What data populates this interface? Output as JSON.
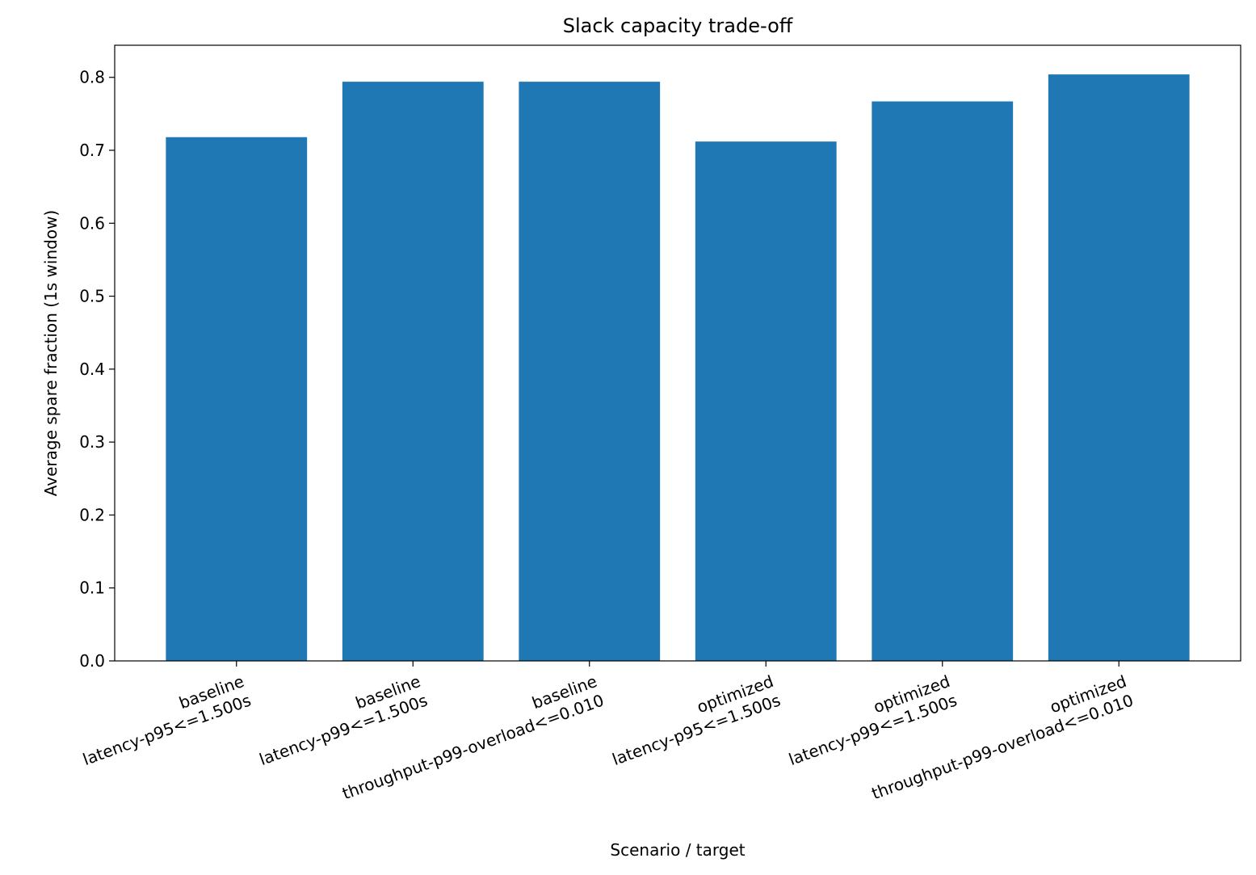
{
  "chart_data": {
    "type": "bar",
    "title": "Slack capacity trade-off",
    "xlabel": "Scenario / target",
    "ylabel": "Average spare fraction (1s window)",
    "categories": [
      [
        "baseline",
        "latency-p95<=1.500s"
      ],
      [
        "baseline",
        "latency-p99<=1.500s"
      ],
      [
        "baseline",
        "throughput-p99-overload<=0.010"
      ],
      [
        "optimized",
        "latency-p95<=1.500s"
      ],
      [
        "optimized",
        "latency-p99<=1.500s"
      ],
      [
        "optimized",
        "throughput-p99-overload<=0.010"
      ]
    ],
    "values": [
      0.718,
      0.794,
      0.794,
      0.712,
      0.767,
      0.804
    ],
    "color": "#1f77b4",
    "ylim": [
      0,
      0.844
    ],
    "yticks": [
      {
        "value": 0,
        "label": "0.0"
      },
      0.1,
      0.2,
      0.3,
      0.4,
      0.5,
      0.6,
      0.7,
      0.8
    ],
    "grid": false
  }
}
